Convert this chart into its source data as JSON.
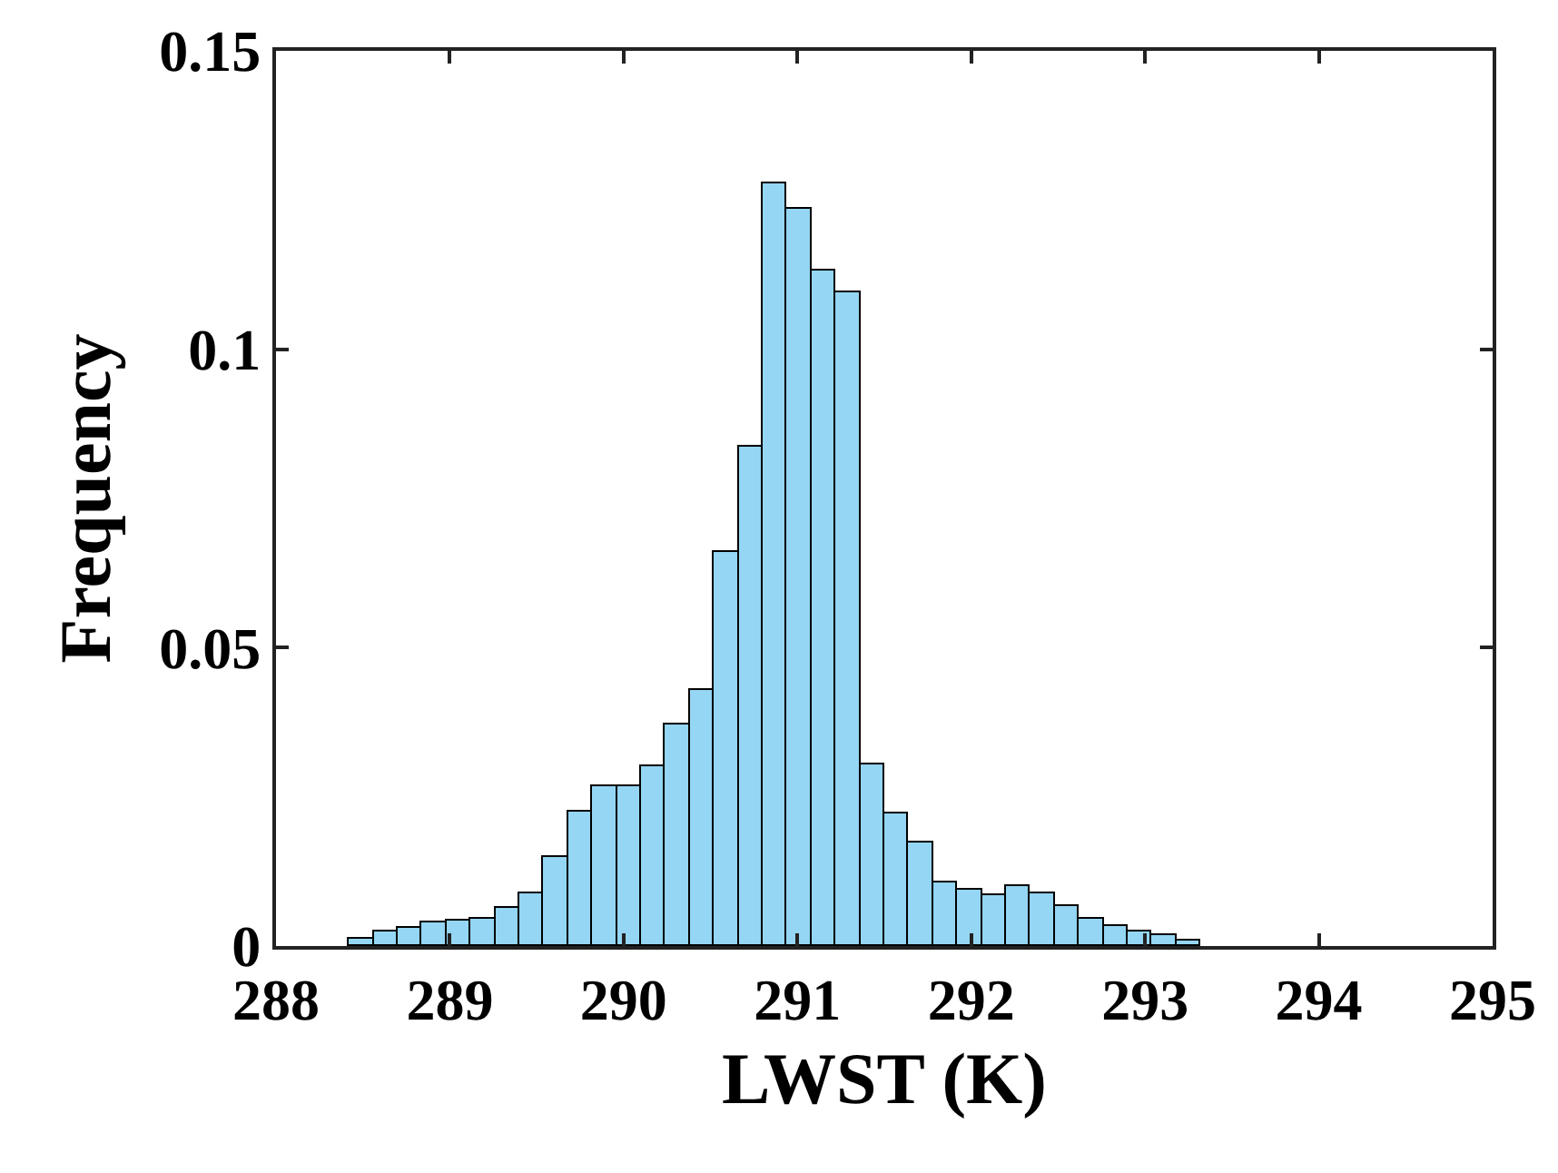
{
  "chart_data": {
    "type": "histogram",
    "xlabel": "LWST (K)",
    "ylabel": "Frequency",
    "color": "#94d6f3",
    "bins": [
      288.42,
      288.56,
      288.7,
      288.84,
      288.98,
      289.12,
      289.26,
      289.4,
      289.54,
      289.68,
      289.82,
      289.96,
      290.1,
      290.24,
      290.38,
      290.52,
      290.66,
      290.8,
      290.94,
      291.08,
      291.22,
      291.36,
      291.5,
      291.64,
      291.78,
      291.92,
      292.06,
      292.2,
      292.34,
      292.48,
      292.62,
      292.76,
      292.9,
      293.04,
      293.18,
      293.32
    ],
    "values": [
      0.0012,
      0.0024,
      0.0031,
      0.0039,
      0.0043,
      0.0047,
      0.0063,
      0.0089,
      0.015,
      0.0226,
      0.0269,
      0.0267,
      0.0301,
      0.0371,
      0.0429,
      0.066,
      0.0838,
      0.1278,
      0.1235,
      0.1131,
      0.1095,
      0.0304,
      0.0221,
      0.0172,
      0.0107,
      0.0094,
      0.0086,
      0.0099,
      0.0088,
      0.0068,
      0.0047,
      0.0033,
      0.0023,
      0.0018,
      0.001
    ],
    "xlim": [
      288,
      295
    ],
    "xticks": [
      288,
      289,
      290,
      291,
      292,
      293,
      294,
      295
    ],
    "ylim": [
      0,
      0.15
    ],
    "yticks": [
      0,
      0.05,
      0.1,
      0.15
    ],
    "grid": false,
    "legend": false
  }
}
